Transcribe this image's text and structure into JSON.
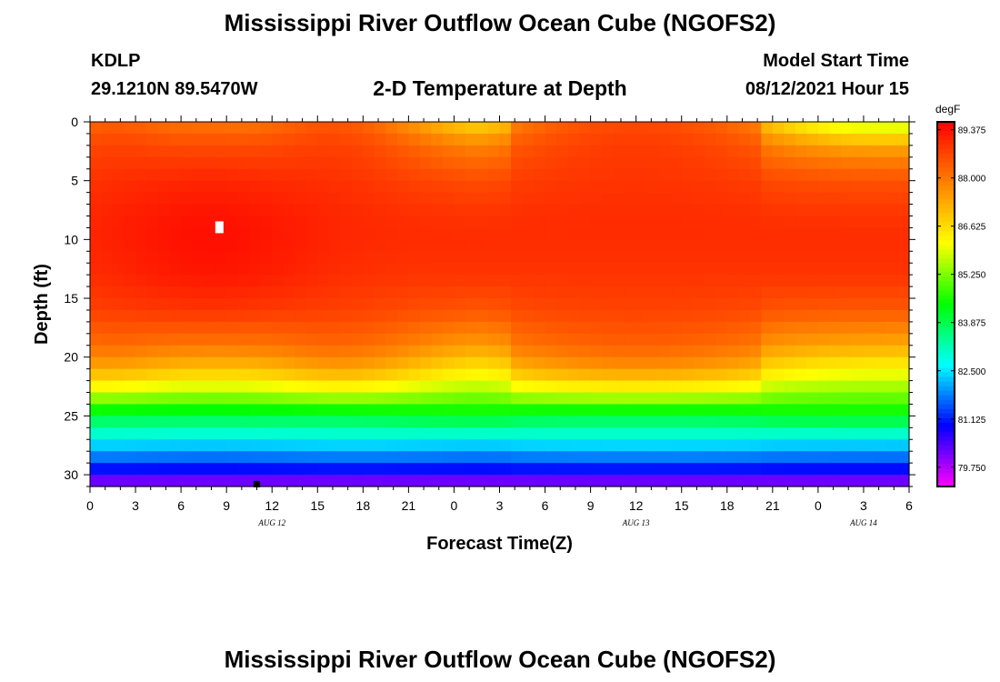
{
  "header": {
    "title": "Mississippi River Outflow Ocean Cube (NGOFS2)",
    "station_id": "KDLP",
    "station_coords": "29.1210N  89.5470W",
    "plot_title": "2-D Temperature at Depth",
    "model_start_label": "Model Start Time",
    "model_start_value": "08/12/2021 Hour 15"
  },
  "footer": {
    "title": "Mississippi River Outflow Ocean Cube (NGOFS2)"
  },
  "chart_data": {
    "type": "heatmap",
    "title": "2-D Temperature at Depth",
    "xlabel": "Forecast Time(Z)",
    "ylabel": "Depth (ft)",
    "x_range_hours": [
      0,
      54
    ],
    "x_tick_labels": [
      "0",
      "3",
      "6",
      "9",
      "12",
      "15",
      "18",
      "21",
      "0",
      "3",
      "6",
      "9",
      "12",
      "15",
      "18",
      "21",
      "0",
      "3",
      "6"
    ],
    "date_labels": [
      {
        "text": "AUG 12",
        "hour": 12
      },
      {
        "text": "AUG 13",
        "hour": 36
      },
      {
        "text": "AUG 14",
        "hour": 51
      }
    ],
    "y_range": [
      0,
      31
    ],
    "y_ticks": [
      0,
      5,
      10,
      15,
      20,
      25,
      30
    ],
    "colorbar": {
      "units": "degF",
      "min": 79.2,
      "max": 89.6,
      "tick_values": [
        89.375,
        88.0,
        86.625,
        85.25,
        83.875,
        82.5,
        81.125,
        79.75
      ],
      "tick_labels": [
        "89.375",
        "88.000",
        "86.625",
        "85.250",
        "83.875",
        "82.500",
        "81.125",
        "79.750"
      ],
      "colors": [
        "#ff00ff",
        "#8000ff",
        "#0000ff",
        "#0080ff",
        "#00ffff",
        "#00ff80",
        "#00ff00",
        "#80ff00",
        "#ffff00",
        "#ffc000",
        "#ff8000",
        "#ff4000",
        "#ff0000"
      ]
    },
    "depth_profile": {
      "depths_ft": [
        0,
        2,
        5,
        8,
        10,
        13,
        16,
        19,
        21,
        23,
        25,
        27,
        29,
        31
      ],
      "stratified": [
        86.2,
        87.6,
        88.5,
        88.9,
        89.0,
        88.9,
        88.4,
        87.3,
        86.2,
        85.3,
        84.3,
        82.6,
        81.4,
        79.8
      ],
      "mixed": [
        88.6,
        88.8,
        88.9,
        89.0,
        89.0,
        88.9,
        88.7,
        88.3,
        87.6,
        86.0,
        84.0,
        82.7,
        81.5,
        79.8
      ],
      "hot_core": [
        88.0,
        88.6,
        89.1,
        89.35,
        89.4,
        89.3,
        88.9,
        88.0,
        87.0,
        85.6,
        84.0,
        82.6,
        81.4,
        79.8
      ],
      "core_center_hour": 8,
      "core_width_hours": 7,
      "mixing_centers_hours": [
        3,
        15,
        36
      ],
      "mixing_width_hours": 8
    },
    "markers": [
      {
        "type": "white-rect",
        "hour": 8.5,
        "depth_ft": 9
      },
      {
        "type": "black-square",
        "hour": 11,
        "depth_ft": 30.8
      }
    ]
  }
}
